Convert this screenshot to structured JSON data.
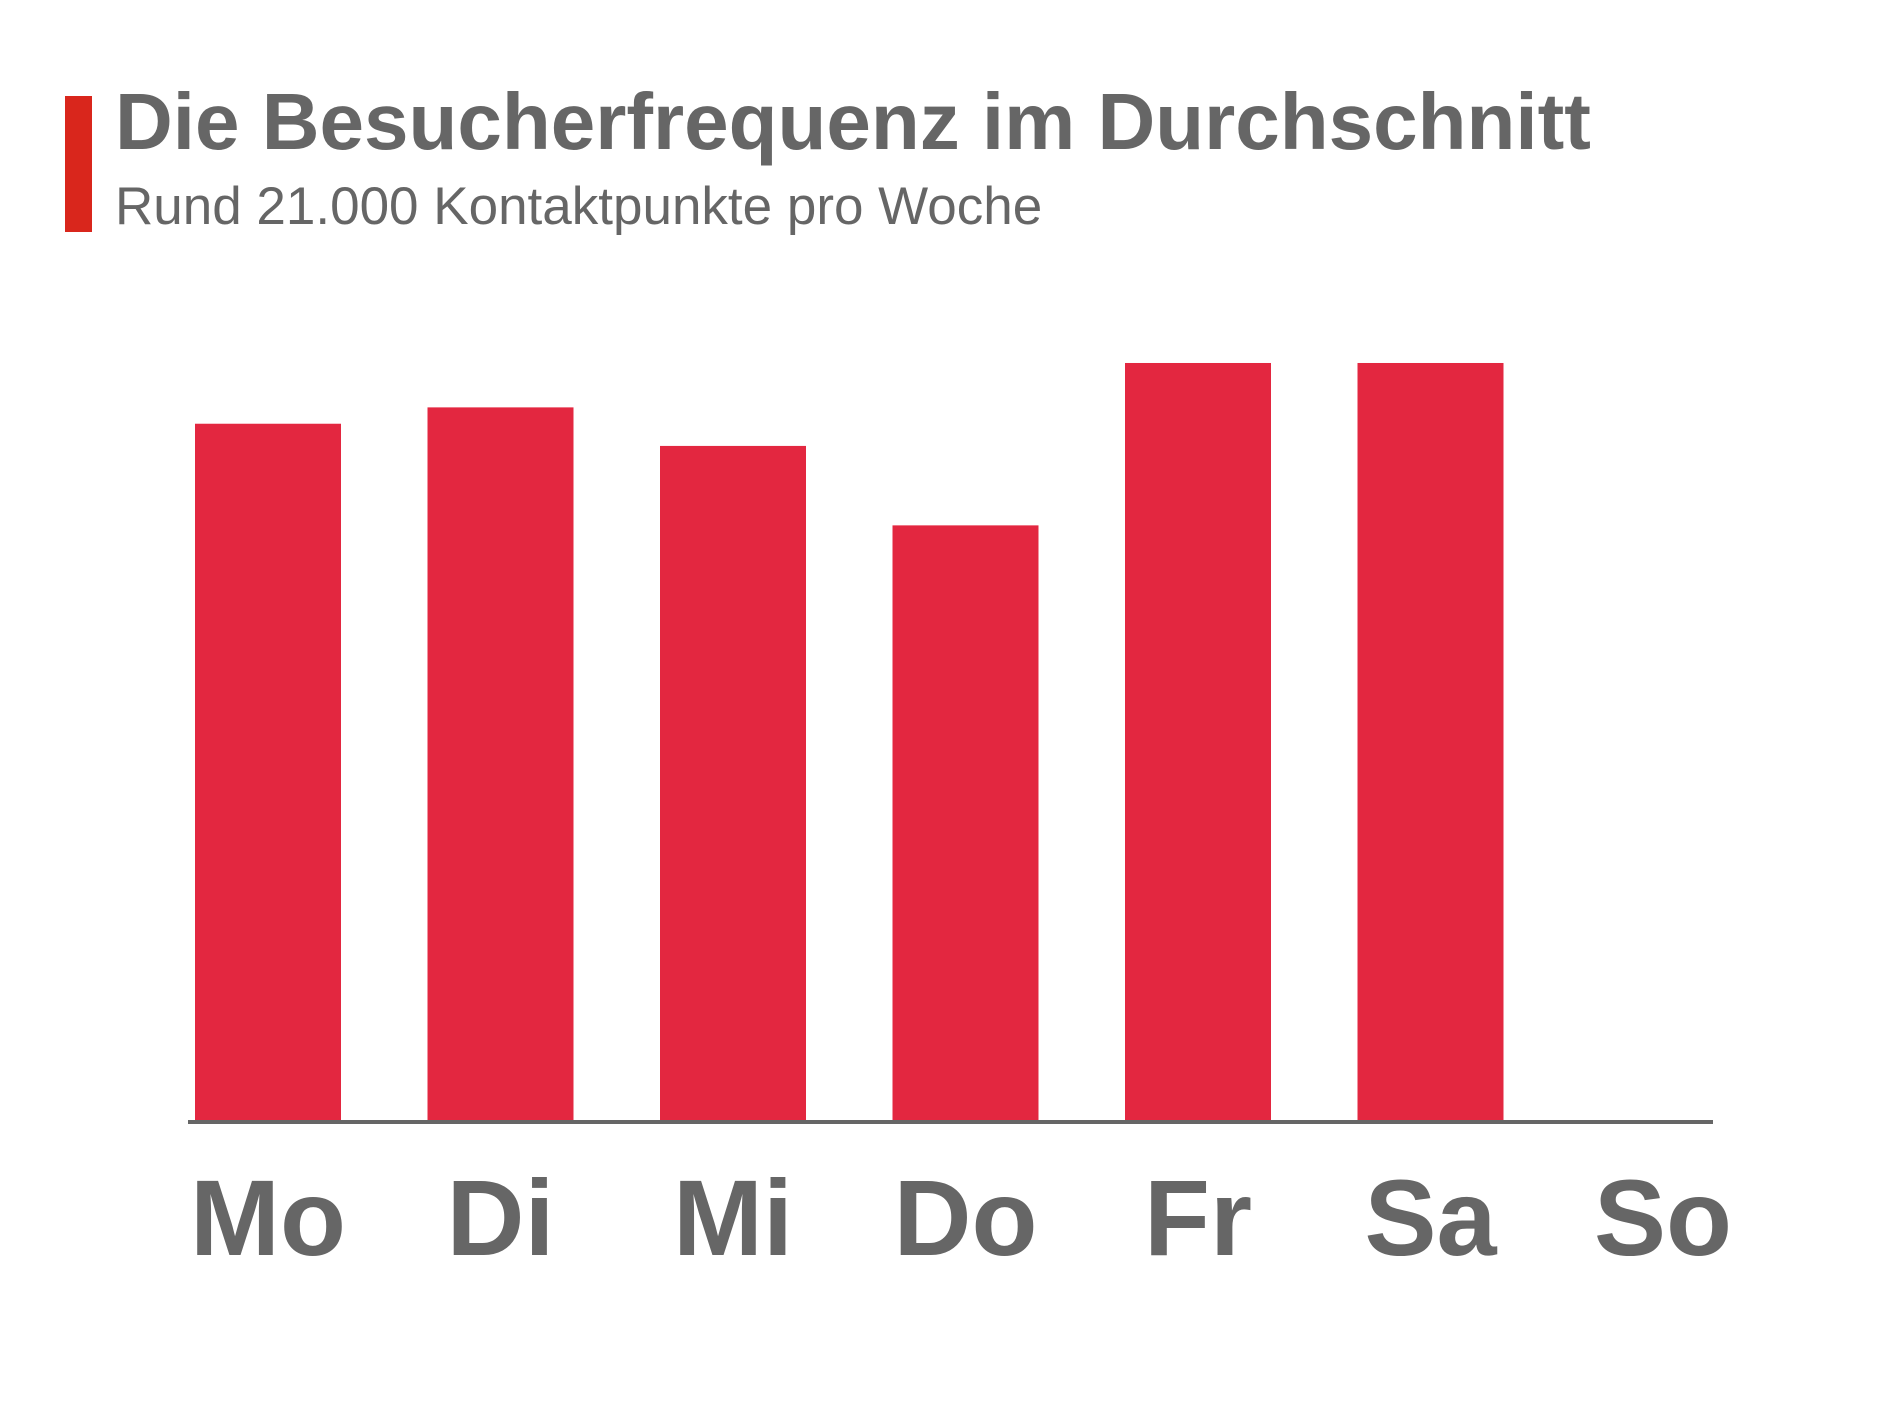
{
  "header": {
    "title": "Die Besucherfrequenz im Durchschnitt",
    "subtitle": "Rund 21.000 Kontaktpunkte pro Woche"
  },
  "colors": {
    "bar": "#e32740",
    "accent": "#d9261c",
    "text": "#666666",
    "axis": "#666666"
  },
  "chart_data": {
    "type": "bar",
    "title": "Die Besucherfrequenz im Durchschnitt",
    "subtitle": "Rund 21.000 Kontaktpunkte pro Woche",
    "categories": [
      "Mo",
      "Di",
      "Mi",
      "Do",
      "Fr",
      "Sa",
      "So"
    ],
    "values": [
      596,
      610,
      577,
      509,
      648,
      648,
      0
    ],
    "ylim": [
      0,
      850
    ],
    "xlabel": "",
    "ylabel": "",
    "grid": false,
    "legend": "none",
    "y_axis_visible": false
  }
}
